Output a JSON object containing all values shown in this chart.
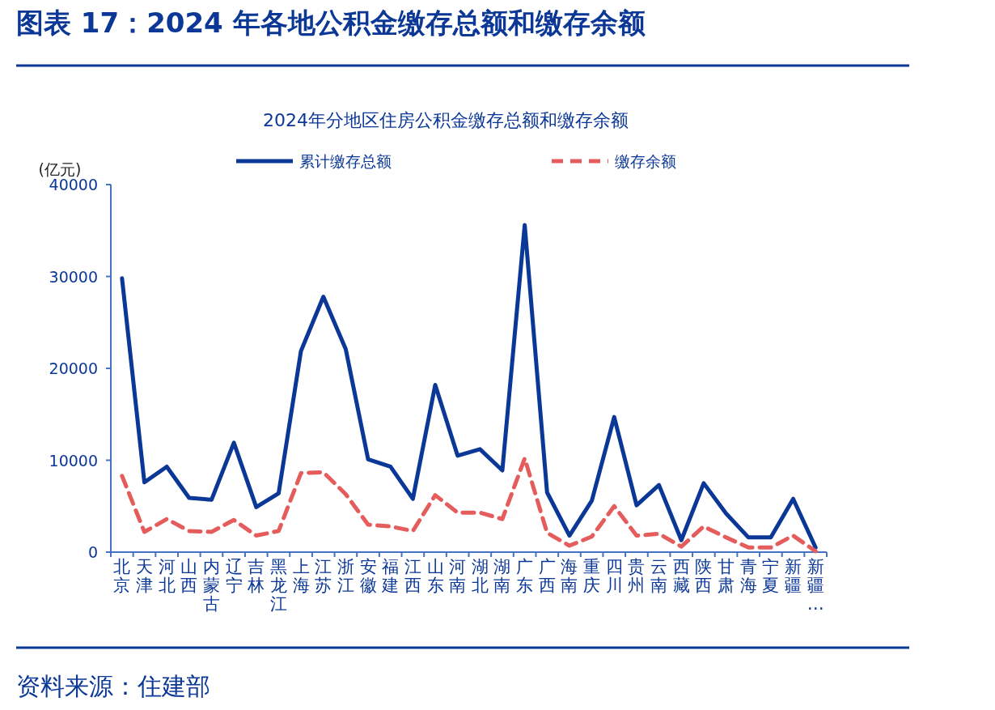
{
  "chart_data": {
    "type": "line",
    "title": "图表 17：2024 年各地公积金缴存总额和缴存余额",
    "subtitle": "2024年分地区住房公积金缴存总额和缴存余额",
    "ylabel": "(亿元)",
    "categories": [
      "北京",
      "天津",
      "河北",
      "山西",
      "内蒙古",
      "辽宁",
      "吉林",
      "黑龙江",
      "上海",
      "江苏",
      "浙江",
      "安徽",
      "福建",
      "江西",
      "山东",
      "河南",
      "湖北",
      "湖南",
      "广东",
      "广西",
      "海南",
      "重庆",
      "四川",
      "贵州",
      "云南",
      "西藏",
      "陕西",
      "甘肃",
      "青海",
      "宁夏",
      "新疆",
      "新疆…"
    ],
    "series": [
      {
        "name": "累计缴存总额",
        "color": "#0b3797",
        "line_style": "solid",
        "values": [
          29800,
          7600,
          9300,
          5900,
          5700,
          11900,
          4900,
          6400,
          21900,
          27800,
          22100,
          10100,
          9300,
          5800,
          18200,
          10500,
          11200,
          8900,
          35600,
          6500,
          1800,
          5600,
          14700,
          5100,
          7300,
          1300,
          7500,
          4200,
          1600,
          1600,
          5800,
          500
        ]
      },
      {
        "name": "缴存余额",
        "color": "#e45c5c",
        "line_style": "dashed",
        "values": [
          8300,
          2200,
          3600,
          2300,
          2200,
          3500,
          1800,
          2300,
          8600,
          8700,
          6300,
          3000,
          2800,
          2300,
          6200,
          4300,
          4300,
          3600,
          10200,
          2100,
          700,
          1700,
          5000,
          1800,
          2000,
          600,
          2800,
          1600,
          500,
          500,
          1800,
          100
        ]
      }
    ],
    "ylim": [
      0,
      40000
    ],
    "yticks": [
      0,
      10000,
      20000,
      30000,
      40000
    ],
    "grid": false,
    "legend": "top",
    "marker": "none",
    "annotations": [
      "资料来源：住建部"
    ]
  }
}
